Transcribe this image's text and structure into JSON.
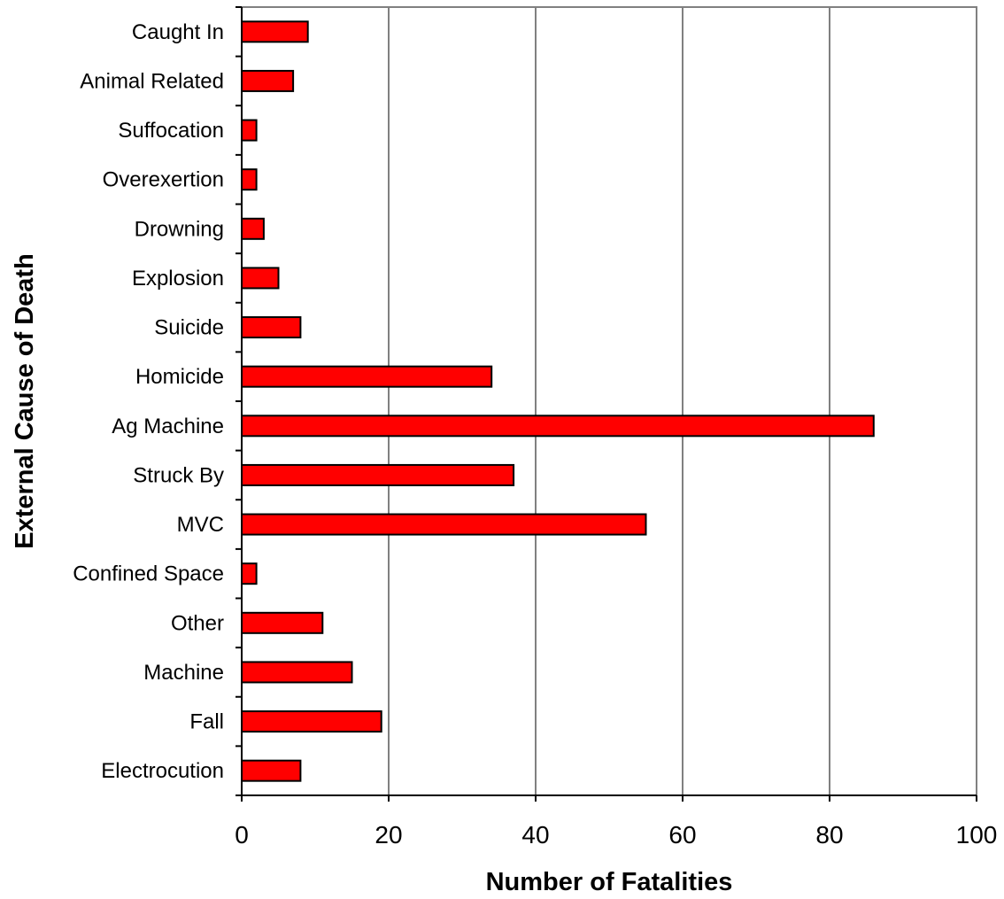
{
  "chart_data": {
    "type": "bar",
    "orientation": "horizontal",
    "xlabel": "Number of Fatalities",
    "ylabel": "External Cause of Death",
    "xlim": [
      0,
      100
    ],
    "xticks": [
      "0",
      "20",
      "40",
      "60",
      "80",
      "100"
    ],
    "categories": [
      "Caught In",
      "Animal Related",
      "Suffocation",
      "Overexertion",
      "Drowning",
      "Explosion",
      "Suicide",
      "Homicide",
      "Ag Machine",
      "Struck By",
      "MVC",
      "Confined Space",
      "Other",
      "Machine",
      "Fall",
      "Electrocution"
    ],
    "values": [
      9,
      7,
      2,
      2,
      3,
      5,
      8,
      34,
      86,
      37,
      55,
      2,
      11,
      15,
      19,
      8
    ],
    "bar_color": "#ff0000",
    "grid": "vertical gridlines",
    "legend": "none"
  }
}
